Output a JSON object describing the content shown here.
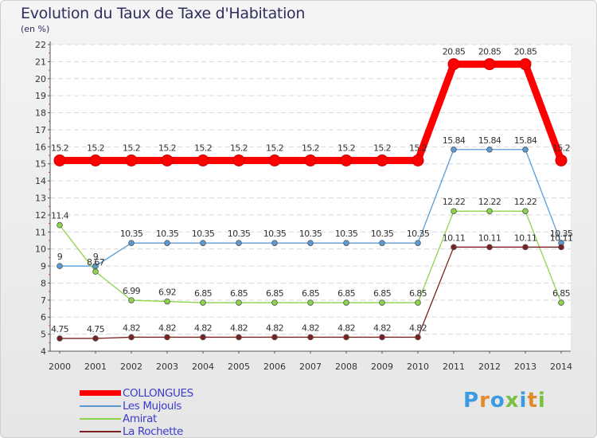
{
  "title": "Evolution du Taux de Taxe d'Habitation",
  "subtitle": "(en %)",
  "logo_text": "Proxiti",
  "logo_colors": [
    "#3a9be0",
    "#e08a2a",
    "#3a9be0",
    "#7ac142",
    "#3a9be0",
    "#e08a2a",
    "#7ac142"
  ],
  "chart_data": {
    "type": "line",
    "x": [
      "2000",
      "2001",
      "2002",
      "2003",
      "2004",
      "2005",
      "2006",
      "2007",
      "2008",
      "2009",
      "2010",
      "2011",
      "2012",
      "2013",
      "2014"
    ],
    "ylim": [
      4,
      22
    ],
    "yticks": [
      4,
      5,
      6,
      7,
      8,
      9,
      10,
      11,
      12,
      13,
      14,
      15,
      16,
      17,
      18,
      19,
      20,
      21,
      22
    ],
    "grid": true,
    "legend_position": "bottom-left",
    "series": [
      {
        "name": "COLLONGUES",
        "color": "#ff0000",
        "values": [
          15.2,
          15.2,
          15.2,
          15.2,
          15.2,
          15.2,
          15.2,
          15.2,
          15.2,
          15.2,
          15.2,
          20.85,
          20.85,
          20.85,
          15.2
        ],
        "labels": [
          "15.2",
          "15.2",
          "15.2",
          "15.2",
          "15.2",
          "15.2",
          "15.2",
          "15.2",
          "15.2",
          "15.2",
          "15.2",
          "20.85",
          "20.85",
          "20.85",
          "15.2"
        ]
      },
      {
        "name": "Les Mujouls",
        "color": "#5b9bd5",
        "values": [
          9,
          9,
          10.35,
          10.35,
          10.35,
          10.35,
          10.35,
          10.35,
          10.35,
          10.35,
          10.35,
          15.84,
          15.84,
          15.84,
          10.35
        ],
        "labels": [
          "9",
          "9",
          "10.35",
          "10.35",
          "10.35",
          "10.35",
          "10.35",
          "10.35",
          "10.35",
          "10.35",
          "10.35",
          "15.84",
          "15.84",
          "15.84",
          "10.35"
        ]
      },
      {
        "name": "Amirat",
        "color": "#8cd44a",
        "values": [
          11.4,
          8.67,
          6.99,
          6.92,
          6.85,
          6.85,
          6.85,
          6.85,
          6.85,
          6.85,
          6.85,
          12.22,
          12.22,
          12.22,
          6.85
        ],
        "labels": [
          "11.4",
          "8.67",
          "6.99",
          "6.92",
          "6.85",
          "6.85",
          "6.85",
          "6.85",
          "6.85",
          "6.85",
          "6.85",
          "12.22",
          "12.22",
          "12.22",
          "6.85"
        ]
      },
      {
        "name": "La Rochette",
        "color": "#7a2020",
        "values": [
          4.75,
          4.75,
          4.82,
          4.82,
          4.82,
          4.82,
          4.82,
          4.82,
          4.82,
          4.82,
          4.82,
          10.11,
          10.11,
          10.11,
          10.11
        ],
        "labels": [
          "4.75",
          "4.75",
          "4.82",
          "4.82",
          "4.82",
          "4.82",
          "4.82",
          "4.82",
          "4.82",
          "4.82",
          "4.82",
          "10.11",
          "10.11",
          "10.11",
          "10.11"
        ]
      }
    ]
  }
}
